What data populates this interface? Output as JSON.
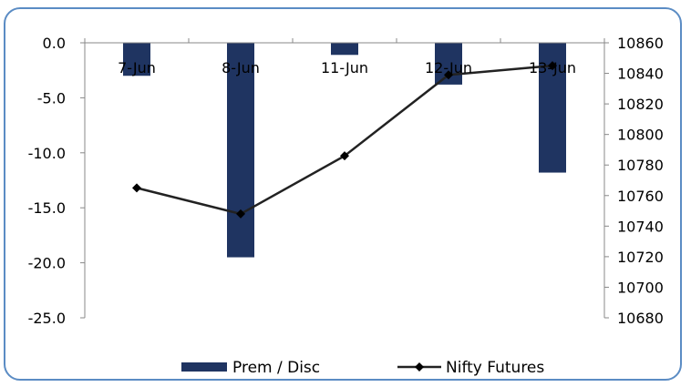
{
  "chart_data": {
    "type": "bar+line",
    "categories": [
      "7-Jun",
      "8-Jun",
      "11-Jun",
      "12-Jun",
      "13-Jun"
    ],
    "series": [
      {
        "name": "Prem / Disc",
        "type": "bar",
        "axis": "left",
        "color": "#1f3461",
        "values": [
          -3.0,
          -19.5,
          -1.1,
          -3.8,
          -11.8
        ]
      },
      {
        "name": "Nifty Futures",
        "type": "line",
        "axis": "right",
        "color": "#222222",
        "values": [
          10765,
          10748,
          10786,
          10839,
          10845
        ]
      }
    ],
    "left_axis": {
      "ylim": [
        -25.0,
        0.0
      ],
      "ticks": [
        "0.0",
        "-5.0",
        "-10.0",
        "-15.0",
        "-20.0",
        "-25.0"
      ]
    },
    "right_axis": {
      "ylim": [
        10680,
        10860
      ],
      "ticks": [
        "10860",
        "10840",
        "10820",
        "10800",
        "10780",
        "10760",
        "10740",
        "10720",
        "10700",
        "10680"
      ]
    },
    "grid": false,
    "legend": "bottom"
  }
}
